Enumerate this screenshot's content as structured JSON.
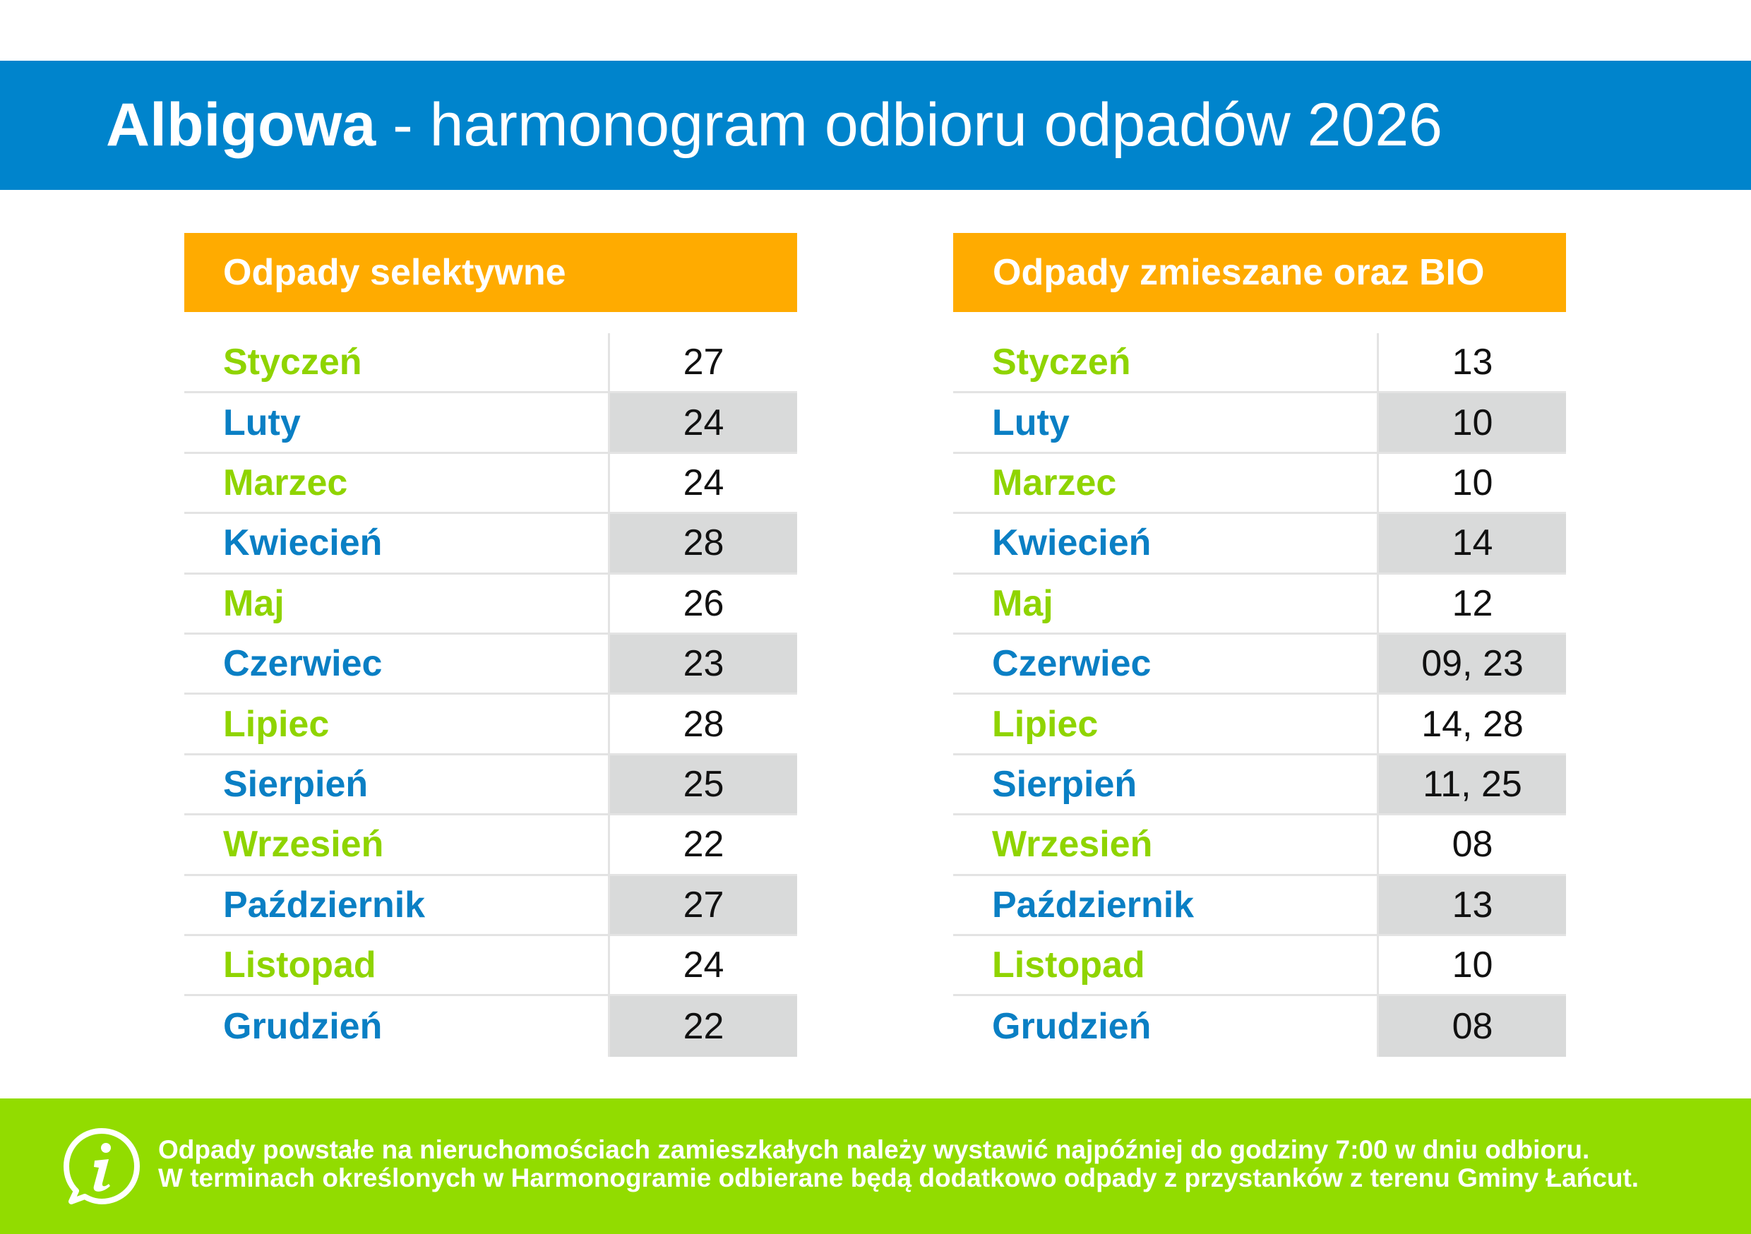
{
  "header": {
    "place": "Albigowa",
    "rest": " - harmonogram odbioru odpadów 2026",
    "background": "#0084cc"
  },
  "panels": [
    {
      "title": "Odpady selektywne",
      "rows": [
        {
          "month": "Styczeń",
          "day": "27"
        },
        {
          "month": "Luty",
          "day": "24"
        },
        {
          "month": "Marzec",
          "day": "24"
        },
        {
          "month": "Kwiecień",
          "day": "28"
        },
        {
          "month": "Maj",
          "day": "26"
        },
        {
          "month": "Czerwiec",
          "day": "23"
        },
        {
          "month": "Lipiec",
          "day": "28"
        },
        {
          "month": "Sierpień",
          "day": "25"
        },
        {
          "month": "Wrzesień",
          "day": "22"
        },
        {
          "month": "Październik",
          "day": "27"
        },
        {
          "month": "Listopad",
          "day": "24"
        },
        {
          "month": "Grudzień",
          "day": "22"
        }
      ]
    },
    {
      "title": "Odpady zmieszane oraz BIO",
      "rows": [
        {
          "month": "Styczeń",
          "day": "13"
        },
        {
          "month": "Luty",
          "day": "10"
        },
        {
          "month": "Marzec",
          "day": "10"
        },
        {
          "month": "Kwiecień",
          "day": "14"
        },
        {
          "month": "Maj",
          "day": "12"
        },
        {
          "month": "Czerwiec",
          "day": "09, 23"
        },
        {
          "month": "Lipiec",
          "day": "14, 28"
        },
        {
          "month": "Sierpień",
          "day": "11, 25"
        },
        {
          "month": "Wrzesień",
          "day": "08"
        },
        {
          "month": "Październik",
          "day": "13"
        },
        {
          "month": "Listopad",
          "day": "10"
        },
        {
          "month": "Grudzień",
          "day": "08"
        }
      ]
    }
  ],
  "footer": {
    "icon": "info-icon",
    "line1": "Odpady powstałe na nieruchomościach zamieszkałych należy wystawić najpóźniej do godziny 7:00 w dniu odbioru.",
    "line2": "W terminach określonych w Harmonogramie odbierane będą dodatkowo odpady z przystanków z terenu Gminy Łańcut."
  },
  "colors": {
    "header_blue": "#0084cc",
    "panel_orange": "#ffab00",
    "month_green": "#8fd400",
    "month_blue": "#0a7fc4",
    "shaded_cell": "#d9dada",
    "footer_green": "#92dc00"
  }
}
